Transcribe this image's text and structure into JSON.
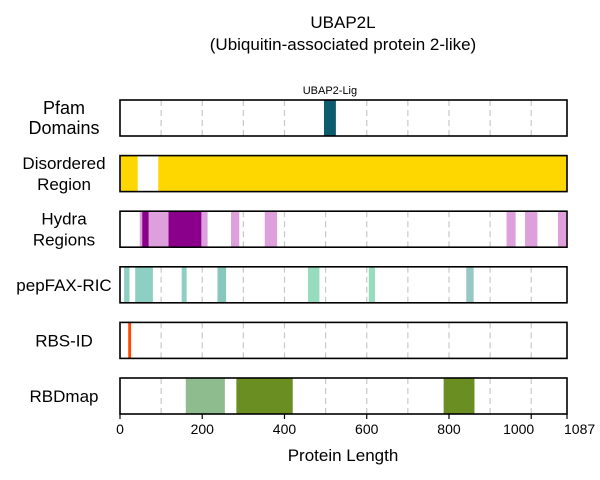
{
  "chart_data": {
    "type": "bar",
    "title": "UBAP2L",
    "subtitle": "(Ubiquitin-associated protein 2-like)",
    "xlabel": "Protein Length",
    "xlim": [
      0,
      1087
    ],
    "x_ticks": [
      0,
      200,
      400,
      600,
      800,
      1000,
      1087
    ],
    "gridlines_x": [
      100,
      200,
      300,
      400,
      500,
      600,
      700,
      800,
      900,
      1000
    ],
    "tracks": [
      {
        "label": "Pfam\nDomains",
        "segments": [
          {
            "start": 496,
            "end": 525,
            "color": "#0d5c6e",
            "label": "UBAP2-Lig"
          }
        ]
      },
      {
        "label": "Disordered\nRegion",
        "segments": [
          {
            "start": 0,
            "end": 43,
            "color": "#ffd700"
          },
          {
            "start": 93,
            "end": 1087,
            "color": "#ffd700"
          }
        ]
      },
      {
        "label": "Hydra\nRegions",
        "segments": [
          {
            "start": 48,
            "end": 54,
            "color": "#dda0dd"
          },
          {
            "start": 54,
            "end": 70,
            "color": "#8b008b"
          },
          {
            "start": 70,
            "end": 118,
            "color": "#dda0dd"
          },
          {
            "start": 118,
            "end": 198,
            "color": "#8b008b"
          },
          {
            "start": 198,
            "end": 213,
            "color": "#dda0dd"
          },
          {
            "start": 270,
            "end": 290,
            "color": "#dda0dd"
          },
          {
            "start": 352,
            "end": 382,
            "color": "#dda0dd"
          },
          {
            "start": 940,
            "end": 962,
            "color": "#dda0dd"
          },
          {
            "start": 985,
            "end": 1015,
            "color": "#dda0dd"
          },
          {
            "start": 1065,
            "end": 1085,
            "color": "#dda0dd"
          }
        ]
      },
      {
        "label": "pepFAX-RIC",
        "segments": [
          {
            "start": 10,
            "end": 23,
            "color": "#8dcfc2"
          },
          {
            "start": 37,
            "end": 80,
            "color": "#8dcfc2"
          },
          {
            "start": 150,
            "end": 162,
            "color": "#8dcfc2"
          },
          {
            "start": 237,
            "end": 258,
            "color": "#88c8bc"
          },
          {
            "start": 457,
            "end": 485,
            "color": "#98dcc0"
          },
          {
            "start": 605,
            "end": 620,
            "color": "#98dcc0"
          },
          {
            "start": 842,
            "end": 860,
            "color": "#98c8c4"
          }
        ]
      },
      {
        "label": "RBS-ID",
        "segments": [
          {
            "start": 20,
            "end": 27,
            "color": "#ff4500"
          }
        ]
      },
      {
        "label": "RBDmap",
        "segments": [
          {
            "start": 160,
            "end": 255,
            "color": "#8fbc8f"
          },
          {
            "start": 283,
            "end": 420,
            "color": "#6b8e23"
          },
          {
            "start": 787,
            "end": 862,
            "color": "#6b8e23"
          }
        ]
      }
    ]
  }
}
